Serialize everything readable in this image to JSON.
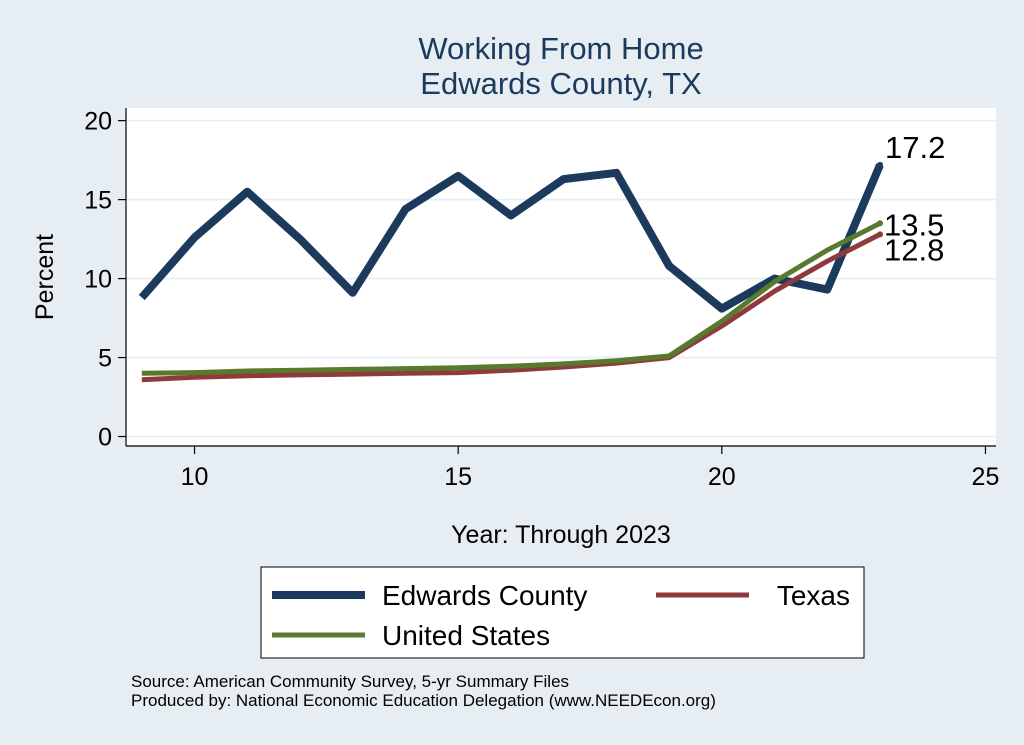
{
  "chart_data": {
    "type": "line",
    "title": "Working From Home",
    "subtitle": "Edwards County, TX",
    "xlabel": "Year: Through 2023",
    "ylabel": "Percent",
    "xlim": [
      8.7,
      25.2
    ],
    "ylim": [
      -0.6,
      20.8
    ],
    "xticks": [
      10,
      15,
      20,
      25
    ],
    "yticks": [
      0,
      5,
      10,
      15,
      20
    ],
    "grid": true,
    "legend_position": "bottom",
    "x": [
      9,
      10,
      11,
      12,
      13,
      14,
      15,
      16,
      17,
      18,
      19,
      20,
      21,
      22,
      23
    ],
    "series": [
      {
        "name": "Edwards County",
        "color": "#1b3a5c",
        "values": [
          8.8,
          12.6,
          15.5,
          12.5,
          9.1,
          14.4,
          16.5,
          14.0,
          16.3,
          16.7,
          10.8,
          8.1,
          10.0,
          9.3,
          17.2
        ],
        "end_label": "17.2"
      },
      {
        "name": "Texas",
        "color": "#8f3a3d",
        "values": [
          3.6,
          3.75,
          3.85,
          3.9,
          3.95,
          4.0,
          4.05,
          4.2,
          4.4,
          4.65,
          5.0,
          7.0,
          9.2,
          11.1,
          12.8
        ],
        "end_label": "12.8"
      },
      {
        "name": "United States",
        "color": "#577a2e",
        "values": [
          4.0,
          4.05,
          4.15,
          4.2,
          4.25,
          4.3,
          4.35,
          4.45,
          4.6,
          4.8,
          5.1,
          7.3,
          9.8,
          11.8,
          13.5
        ],
        "end_label": "13.5"
      }
    ]
  },
  "source": {
    "line1": "Source: American Community Survey, 5-yr Summary Files",
    "line2": "Produced by: National Economic Education Delegation (www.NEEDEcon.org)"
  }
}
